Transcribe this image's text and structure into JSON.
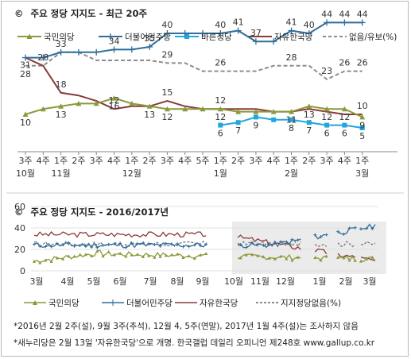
{
  "chart_data": [
    {
      "type": "line",
      "title": "주요 정당 지지도 - 최근 20주",
      "title_symbol": "©",
      "categories": [
        "3주",
        "4주",
        "1주",
        "2주",
        "3주",
        "4주",
        "1주",
        "2주",
        "3주",
        "4주",
        "5주",
        "1주",
        "2주",
        "3주",
        "4주",
        "1주",
        "2주",
        "3주",
        "4주",
        "1주"
      ],
      "month_labels": [
        {
          "index": 0,
          "label": "10월"
        },
        {
          "index": 2,
          "label": "11월"
        },
        {
          "index": 6,
          "label": "12월"
        },
        {
          "index": 11,
          "label": "1월"
        },
        {
          "index": 15,
          "label": "2월"
        },
        {
          "index": 19,
          "label": "3월"
        }
      ],
      "ylim": [
        0,
        52
      ],
      "grid": false,
      "legend_position": "top",
      "series": [
        {
          "name": "국민의당",
          "color": "#8a9a3a",
          "marker": "triangle",
          "values": [
            10,
            12,
            13,
            14,
            14,
            16,
            14,
            13,
            12,
            12,
            12,
            12,
            11,
            11,
            11,
            11,
            13,
            12,
            12,
            9
          ],
          "labels": [
            "10",
            "",
            "13",
            "",
            "",
            "16",
            "",
            "13",
            "12",
            "",
            "",
            "12",
            "",
            "",
            "",
            "11",
            "13",
            "12",
            "12",
            "9"
          ]
        },
        {
          "name": "더불어민주당",
          "color": "#2f6e9c",
          "marker": "plus",
          "values": [
            31,
            31,
            33,
            33,
            33,
            34,
            34,
            35,
            40,
            40,
            40,
            40,
            41,
            37,
            37,
            41,
            40,
            44,
            44,
            44
          ],
          "labels": [
            "31",
            "",
            "33",
            "",
            "",
            "34",
            "",
            "35",
            "40",
            "",
            "",
            "40",
            "41",
            "37",
            "",
            "41",
            "40",
            "44",
            "44",
            "44"
          ]
        },
        {
          "name": "바른정당",
          "color": "#22a6de",
          "marker": "square",
          "values": [
            null,
            null,
            null,
            null,
            null,
            null,
            null,
            null,
            null,
            null,
            null,
            6,
            7,
            9,
            8,
            8,
            7,
            6,
            6,
            5
          ],
          "labels": [
            "",
            "",
            "",
            "",
            "",
            "",
            "",
            "",
            "",
            "",
            "",
            "6",
            "7",
            "9",
            "",
            "8",
            "7",
            "6",
            "6",
            "5"
          ]
        },
        {
          "name": "자유한국당",
          "color": "#8b3a3a",
          "marker": "none",
          "values": [
            31,
            28,
            18,
            17,
            15,
            12,
            13,
            13,
            15,
            13,
            12,
            12,
            12,
            12,
            11,
            11,
            12,
            11,
            10,
            10
          ],
          "labels": [
            "",
            "28",
            "18",
            "",
            "",
            "12",
            "",
            "",
            "15",
            "",
            "",
            "12",
            "",
            "",
            "",
            "",
            "",
            "",
            "",
            "10"
          ]
        },
        {
          "name": "없음/유보(%)",
          "color": "#8c8c8c",
          "marker": "none",
          "dashed": true,
          "values": [
            28,
            28,
            33,
            33,
            30,
            30,
            30,
            30,
            29,
            29,
            26,
            26,
            26,
            26,
            28,
            28,
            28,
            23,
            26,
            26
          ],
          "labels": [
            "28",
            "",
            "",
            "",
            "",
            "",
            "",
            "",
            "29",
            "",
            "",
            "26",
            "",
            "",
            "",
            "28",
            "",
            "23",
            "26",
            "26"
          ]
        }
      ]
    },
    {
      "type": "line",
      "title": "주요 정당 지지도 - 2016/2017년",
      "title_symbol": "©",
      "yticks": [
        0,
        20,
        40,
        60
      ],
      "ylim": [
        0,
        60
      ],
      "x_labels": [
        "3월",
        "4월",
        "5월",
        "6월",
        "7월",
        "8월",
        "9월",
        "10월",
        "11월",
        "12월",
        "1월",
        "2월",
        "3월"
      ],
      "highlight_from": "10월",
      "legend_position": "bottom",
      "series_names": [
        "국민의당",
        "더불어민주당",
        "자유한국당",
        "지지정당없음(%)"
      ],
      "series_colors": [
        "#8a9a3a",
        "#2f6e9c",
        "#8b3a3a",
        "#666666"
      ]
    }
  ],
  "footnotes": [
    "*2016년 2월 2주(설), 9월 3주(추석), 12월 4, 5주(연말), 2017년 1월 4주(설)는 조사하지 않음",
    "*새누리당은 2월 13일 '자유한국당'으로 개명. 한국갤럽 데일리 오피니언 제248호 www.gallup.co.kr"
  ]
}
